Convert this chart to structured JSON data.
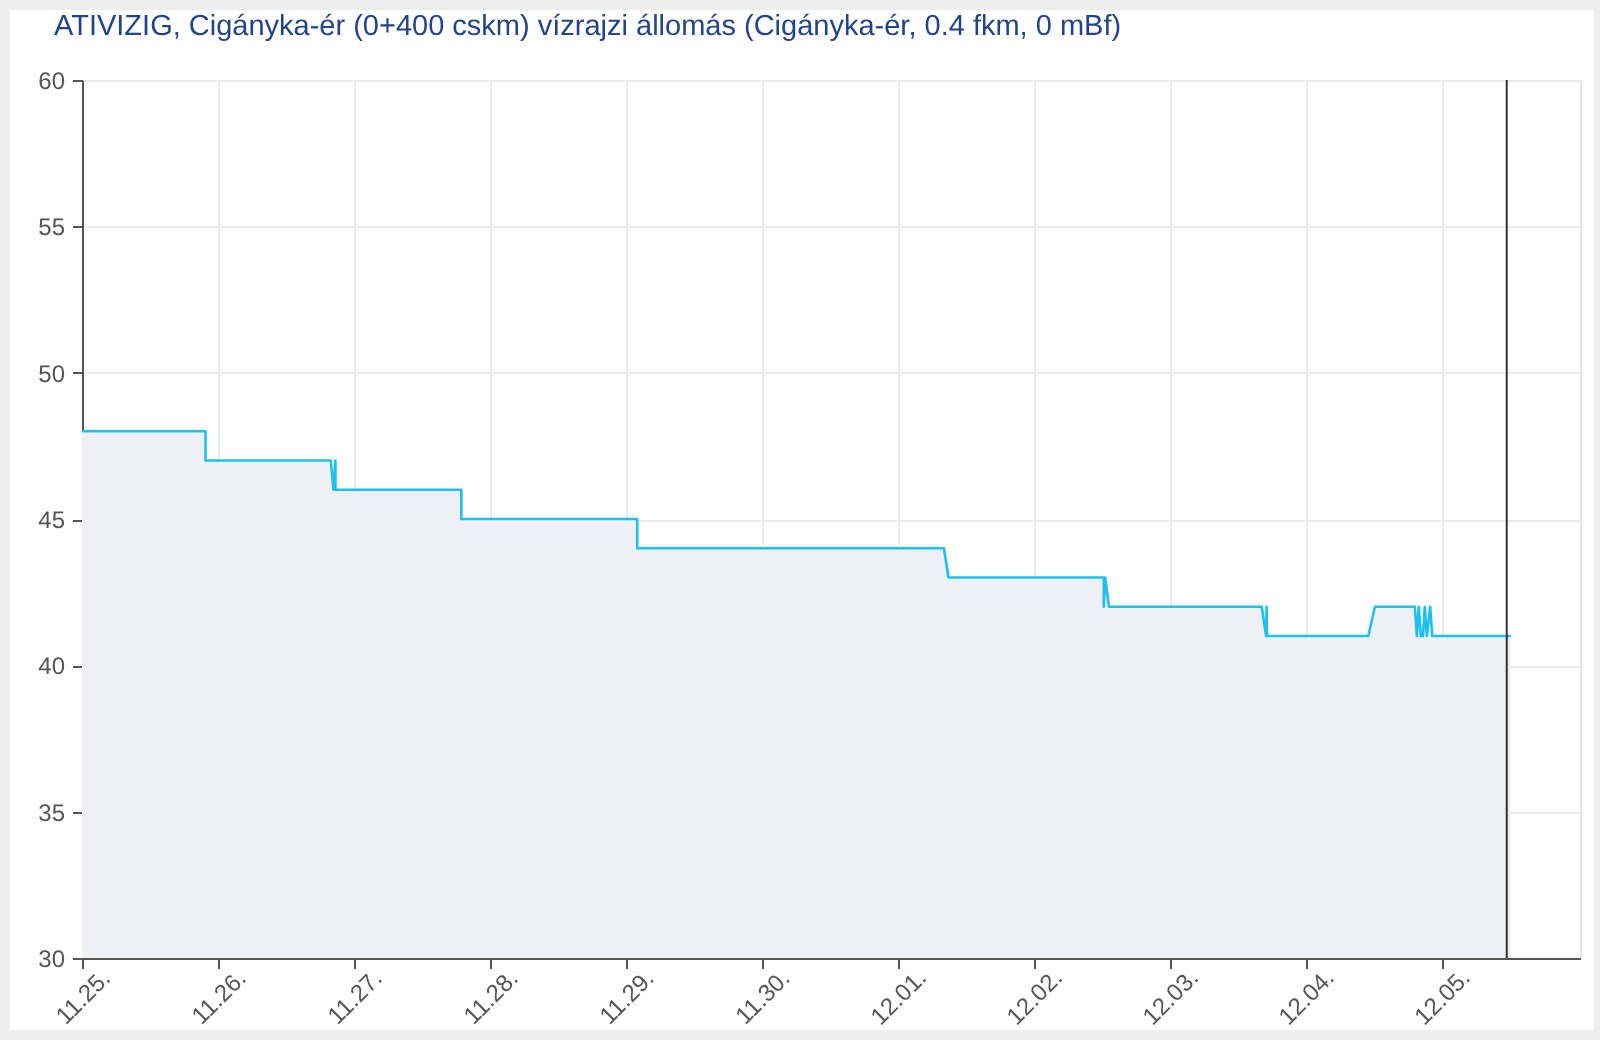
{
  "chart_data": {
    "type": "area",
    "title": "ATIVIZIG, Cigányka-ér (0+400 cskm) vízrajzi állomás (Cigányka-ér, 0.4 fkm, 0 mBf)",
    "x": [
      "--11-25T00:00",
      "--11-25T21:49",
      "--11-25T21:49",
      "--11-26T19:56",
      "--11-26T20:24",
      "--11-26T20:45",
      "--11-26T20:45",
      "--11-27T18:59",
      "--11-27T18:59",
      "--11-29T02:02",
      "--11-29T02:02",
      "--12-01T08:11",
      "--12-01T09:00",
      "--12-02T12:25",
      "--12-02T12:25",
      "--12-02T12:40",
      "--12-02T13:20",
      "--12-03T16:18",
      "--12-03T17:05",
      "--12-03T17:10",
      "--12-03T17:14",
      "--12-04T11:07",
      "--12-04T12:17",
      "--12-04T19:21",
      "--12-04T19:42",
      "--12-04T20:02",
      "--12-04T20:24",
      "--12-04T20:46",
      "--12-04T21:06",
      "--12-04T21:27",
      "--12-04T22:03",
      "--12-04T22:25",
      "--12-05T12:17"
    ],
    "series": [
      {
        "color": "#1ec0ee",
        "values": [
          48,
          48,
          47,
          47,
          46,
          47,
          46,
          46,
          45,
          45,
          44,
          44,
          43,
          43,
          42,
          43,
          42,
          42,
          41,
          42,
          41,
          41,
          42,
          42,
          41,
          42,
          41,
          41,
          42,
          41,
          42,
          41,
          41
        ]
      }
    ],
    "xlim": [
      "--11-25T00:00",
      "--12-06T00:30"
    ],
    "xticks": [
      {
        "value": "--11-25",
        "label": "11.25."
      },
      {
        "value": "--11-26",
        "label": "11.26."
      },
      {
        "value": "--11-27",
        "label": "11.27."
      },
      {
        "value": "--11-28",
        "label": "11.28."
      },
      {
        "value": "--11-29",
        "label": "11.29."
      },
      {
        "value": "--11-30",
        "label": "11.30."
      },
      {
        "value": "--12-01",
        "label": "12.01."
      },
      {
        "value": "--12-02",
        "label": "12.02."
      },
      {
        "value": "--12-03",
        "label": "12.03."
      },
      {
        "value": "--12-04",
        "label": "12.04."
      },
      {
        "value": "--12-05",
        "label": "12.05."
      }
    ],
    "ylim": [
      30,
      60
    ],
    "yticks": [
      30,
      35,
      40,
      45,
      50,
      55,
      60
    ],
    "grid": true,
    "ref_lines": [
      {
        "axis": "x",
        "value": "--12-05T11:34",
        "color": "#333333"
      }
    ]
  }
}
